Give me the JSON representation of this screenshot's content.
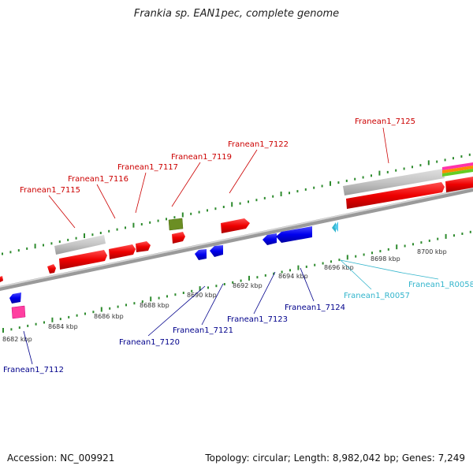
{
  "title": "Frankia sp. EAN1pec, complete genome",
  "footer": {
    "accession": "Accession: NC_009921",
    "topology": "Topology: circular; Length: 8,982,042 bp; Genes: 7,249"
  },
  "colors": {
    "upper_labels": "#cc0000",
    "lower_labels": "#00008b",
    "rna_labels": "#33b5cc",
    "ticks": "#2e8b2e",
    "backbone": "#888888"
  },
  "scale_ticks": [
    {
      "label": "8682 kbp"
    },
    {
      "label": "8684 kbp"
    },
    {
      "label": "8686 kbp"
    },
    {
      "label": "8688 kbp"
    },
    {
      "label": "8690 kbp"
    },
    {
      "label": "8692 kbp"
    },
    {
      "label": "8694 kbp"
    },
    {
      "label": "8696 kbp"
    },
    {
      "label": "8698 kbp"
    },
    {
      "label": "8700 kbp"
    }
  ],
  "gene_labels": {
    "g7112": "Franean1_7112",
    "g7115": "Franean1_7115",
    "g7116": "Franean1_7116",
    "g7117": "Franean1_7117",
    "g7119": "Franean1_7119",
    "g7120": "Franean1_7120",
    "g7121": "Franean1_7121",
    "g7122": "Franean1_7122",
    "g7123": "Franean1_7123",
    "g7124": "Franean1_7124",
    "g7125": "Franean1_7125",
    "r0057": "Franean1_R0057",
    "r0058": "Franean1_R0058"
  }
}
